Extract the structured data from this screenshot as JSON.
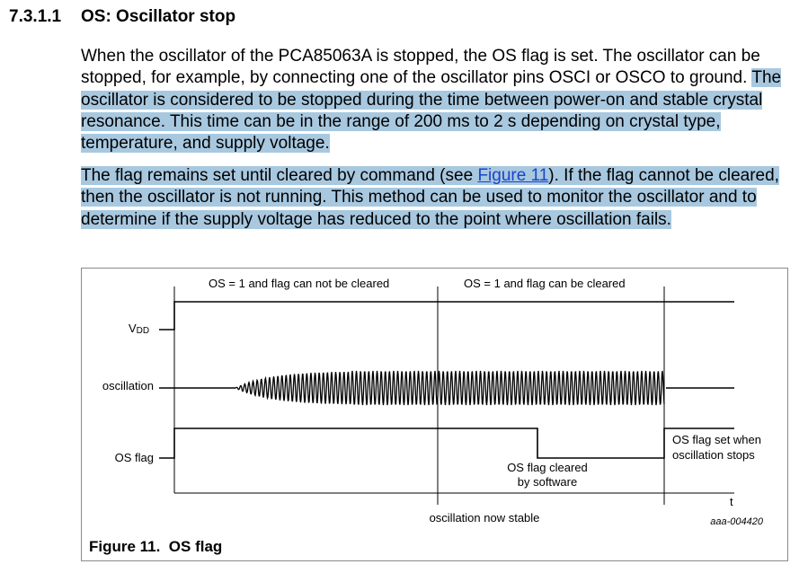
{
  "section": {
    "number": "7.3.1.1",
    "title": "OS: Oscillator stop"
  },
  "paragraph1": {
    "plain": "When the oscillator of the PCA85063A is stopped, the OS flag is set. The oscillator can be stopped, for example, by connecting one of the oscillator pins OSCI or OSCO to ground. ",
    "highlighted": "The oscillator is considered to be stopped during the time between power-on and stable crystal resonance. This time can be in the range of 200 ms to 2 s depending on crystal type, temperature, and supply voltage."
  },
  "paragraph2": {
    "before_link": "The flag remains set until cleared by command (see ",
    "link_text": "Figure 11",
    "after_link": "). If the flag cannot be cleared, then the oscillator is not running. This method can be used to monitor the oscillator and to determine if the supply voltage has reduced to the point where oscillation fails."
  },
  "figure": {
    "caption": "Figure 11.  OS flag",
    "label_not_cleared": "OS = 1 and flag can not be cleared",
    "label_cleared": "OS = 1 and flag can be cleared",
    "signal_vdd_main": "V",
    "signal_vdd_sub": "DD",
    "signal_oscillation": "oscillation",
    "signal_osflag": "OS flag",
    "note_flag_cleared_line1": "OS flag cleared",
    "note_flag_cleared_line2": "by software",
    "note_flag_set_line1": "OS flag set when",
    "note_flag_set_line2": "oscillation stops",
    "time_axis_label": "t",
    "stable_label": "oscillation now stable",
    "figure_id": "aaa-004420"
  }
}
